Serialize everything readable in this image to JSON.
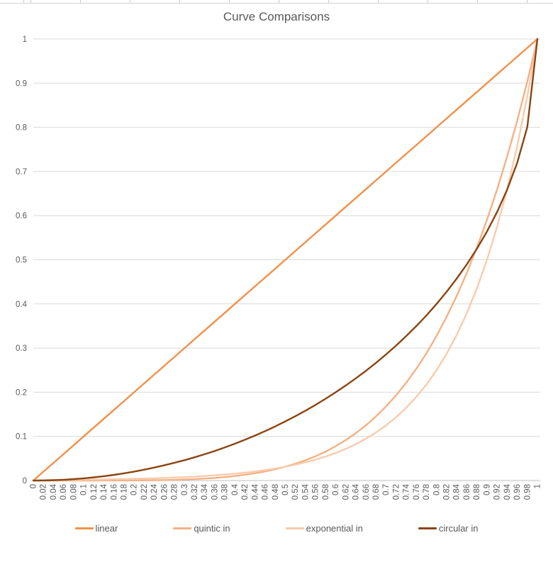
{
  "chart": {
    "title": "Curve Comparisons"
  },
  "colors": {
    "title_text": "#595959",
    "axis_text": "#595959",
    "gridline": "#D9D9D9",
    "axis_line": "#BFBFBF",
    "background": "#FFFFFF"
  },
  "chart_data": {
    "type": "line",
    "title": "Curve Comparisons",
    "xlabel": "",
    "ylabel": "",
    "xlim": [
      0,
      1
    ],
    "ylim": [
      0,
      1
    ],
    "grid": "horizontal",
    "legend_position": "bottom",
    "x": [
      0,
      0.02,
      0.04,
      0.06,
      0.08,
      0.1,
      0.12,
      0.14,
      0.16,
      0.18,
      0.2,
      0.22,
      0.24,
      0.26,
      0.28,
      0.3,
      0.32,
      0.34,
      0.36,
      0.38,
      0.4,
      0.42,
      0.44,
      0.46,
      0.48,
      0.5,
      0.52,
      0.54,
      0.56,
      0.58,
      0.6,
      0.62,
      0.64,
      0.66,
      0.68,
      0.7,
      0.72,
      0.74,
      0.76,
      0.78,
      0.8,
      0.82,
      0.84,
      0.86,
      0.88,
      0.9,
      0.92,
      0.94,
      0.96,
      0.98,
      1
    ],
    "x_tick_labels": [
      "0",
      "0.02",
      "0.04",
      "0.06",
      "0.08",
      "0.1",
      "0.12",
      "0.14",
      "0.16",
      "0.18",
      "0.2",
      "0.22",
      "0.24",
      "0.26",
      "0.28",
      "0.3",
      "0.32",
      "0.34",
      "0.36",
      "0.38",
      "0.4",
      "0.42",
      "0.44",
      "0.46",
      "0.48",
      "0.5",
      "0.52",
      "0.54",
      "0.56",
      "0.58",
      "0.6",
      "0.62",
      "0.64",
      "0.66",
      "0.68",
      "0.7",
      "0.72",
      "0.74",
      "0.76",
      "0.78",
      "0.8",
      "0.82",
      "0.84",
      "0.86",
      "0.88",
      "0.9",
      "0.92",
      "0.94",
      "0.96",
      "0.98",
      "1"
    ],
    "y_tick_labels": [
      "0",
      "0.1",
      "0.2",
      "0.3",
      "0.4",
      "0.5",
      "0.6",
      "0.7",
      "0.8",
      "0.9",
      "1"
    ],
    "series": [
      {
        "name": "linear",
        "color": "#F0914A",
        "values": [
          0,
          0.02,
          0.04,
          0.06,
          0.08,
          0.1,
          0.12,
          0.14,
          0.16,
          0.18,
          0.2,
          0.22,
          0.24,
          0.26,
          0.28,
          0.3,
          0.32,
          0.34,
          0.36,
          0.38,
          0.4,
          0.42,
          0.44,
          0.46,
          0.48,
          0.5,
          0.52,
          0.54,
          0.56,
          0.58,
          0.6,
          0.62,
          0.64,
          0.66,
          0.68,
          0.7,
          0.72,
          0.74,
          0.76,
          0.78,
          0.8,
          0.82,
          0.84,
          0.86,
          0.88,
          0.9,
          0.92,
          0.94,
          0.96,
          0.98,
          1
        ]
      },
      {
        "name": "quintic in",
        "color": "#F4B183",
        "values": [
          0,
          0,
          0,
          0,
          0,
          0,
          0,
          0.0001,
          0.0001,
          0.0002,
          0.0003,
          0.0005,
          0.0008,
          0.0012,
          0.0017,
          0.0024,
          0.0034,
          0.0045,
          0.006,
          0.0079,
          0.0102,
          0.0131,
          0.0165,
          0.0206,
          0.0255,
          0.0313,
          0.038,
          0.0459,
          0.0551,
          0.0656,
          0.0778,
          0.0917,
          0.1074,
          0.1252,
          0.1454,
          0.1681,
          0.1935,
          0.2219,
          0.2535,
          0.2885,
          0.3277,
          0.3707,
          0.4182,
          0.4704,
          0.5277,
          0.5905,
          0.6591,
          0.7339,
          0.8154,
          0.9039,
          1
        ]
      },
      {
        "name": "exponential in",
        "color": "#F8CBAD",
        "values": [
          0,
          0.0011,
          0.0013,
          0.0015,
          0.0017,
          0.002,
          0.0022,
          0.0026,
          0.003,
          0.0034,
          0.0039,
          0.0045,
          0.0052,
          0.0059,
          0.0068,
          0.0078,
          0.009,
          0.0103,
          0.0118,
          0.0136,
          0.0156,
          0.018,
          0.0206,
          0.0237,
          0.0272,
          0.0313,
          0.0359,
          0.0412,
          0.0474,
          0.0544,
          0.0625,
          0.0718,
          0.0825,
          0.0948,
          0.1089,
          0.125,
          0.1436,
          0.165,
          0.1895,
          0.2177,
          0.25,
          0.2872,
          0.3299,
          0.3789,
          0.4353,
          0.5,
          0.5743,
          0.6598,
          0.7579,
          0.8706,
          1
        ]
      },
      {
        "name": "circular in",
        "color": "#8A4512",
        "values": [
          0,
          0.0002,
          0.0008,
          0.0018,
          0.0032,
          0.005,
          0.0072,
          0.0098,
          0.0129,
          0.0163,
          0.0202,
          0.0245,
          0.0293,
          0.0346,
          0.0403,
          0.0461,
          0.0526,
          0.0596,
          0.067,
          0.075,
          0.0835,
          0.0925,
          0.102,
          0.1121,
          0.1227,
          0.134,
          0.1458,
          0.1583,
          0.1715,
          0.1854,
          0.2,
          0.2154,
          0.2316,
          0.2487,
          0.2668,
          0.2859,
          0.306,
          0.3274,
          0.3501,
          0.3742,
          0.4,
          0.4276,
          0.4574,
          0.4897,
          0.525,
          0.5641,
          0.6081,
          0.6588,
          0.72,
          0.801,
          1
        ]
      }
    ]
  }
}
